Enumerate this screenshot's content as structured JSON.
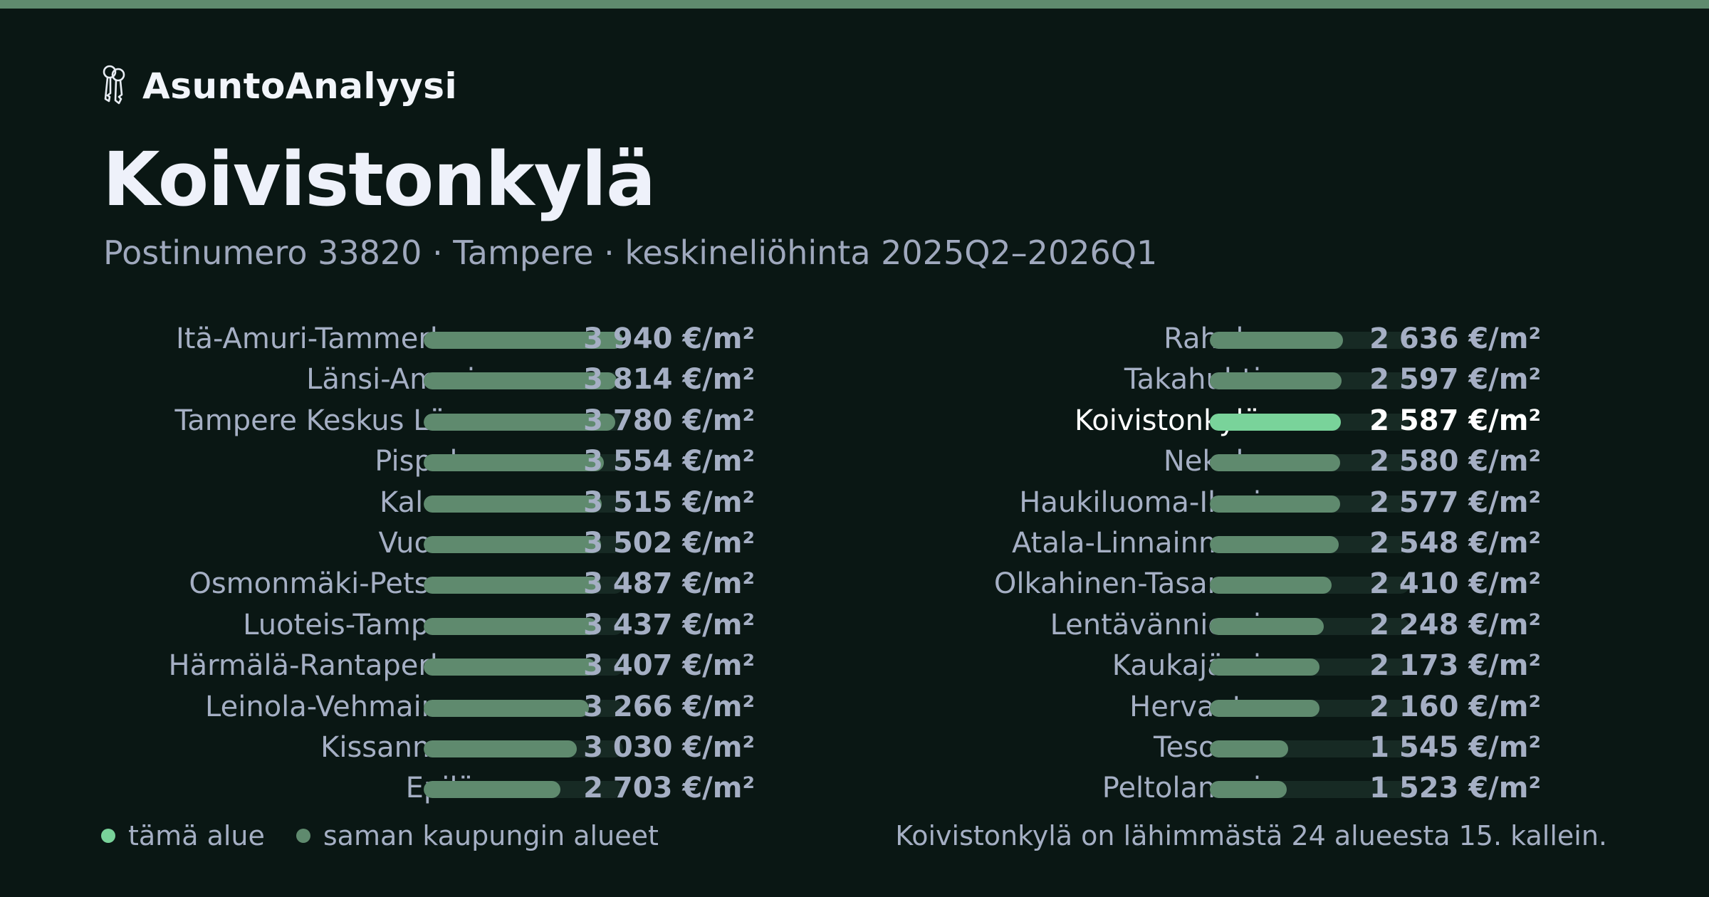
{
  "brand": {
    "name": "AsuntoAnalyysi",
    "icon": "keys-icon"
  },
  "title": "Koivistonkylä",
  "subtitle": "Postinumero 33820 · Tampere · keskineliöhinta 2025Q2–2026Q1",
  "colors": {
    "background": "#0a1714",
    "bar": "#5f8a6e",
    "highlight": "#79d39a",
    "track": "#172a24",
    "text": "#a5afc4"
  },
  "chart_data": {
    "type": "bar",
    "orientation": "horizontal",
    "unit": "€/m²",
    "xlim": [
      0,
      3940
    ],
    "highlight": "Koivistonkylä",
    "left": [
      {
        "name": "Itä-Amuri-Tammerk…",
        "value": 3940,
        "label": "3 940 €/m²"
      },
      {
        "name": "Länsi-Amuri",
        "value": 3814,
        "label": "3 814 €/m²"
      },
      {
        "name": "Tampere Keskus Lä…",
        "value": 3780,
        "label": "3 780 €/m²"
      },
      {
        "name": "Pispala",
        "value": 3554,
        "label": "3 554 €/m²"
      },
      {
        "name": "Kaleva",
        "value": 3515,
        "label": "3 515 €/m²"
      },
      {
        "name": "Vuores",
        "value": 3502,
        "label": "3 502 €/m²"
      },
      {
        "name": "Osmonmäki-Petsa…",
        "value": 3487,
        "label": "3 487 €/m²"
      },
      {
        "name": "Luoteis-Tampere",
        "value": 3437,
        "label": "3 437 €/m²"
      },
      {
        "name": "Härmälä-Rantaperk…",
        "value": 3407,
        "label": "3 407 €/m²"
      },
      {
        "name": "Leinola-Vehmainen",
        "value": 3266,
        "label": "3 266 €/m²"
      },
      {
        "name": "Kissanmaa",
        "value": 3030,
        "label": "3 030 €/m²"
      },
      {
        "name": "Epilä",
        "value": 2703,
        "label": "2 703 €/m²"
      }
    ],
    "right": [
      {
        "name": "Rahola",
        "value": 2636,
        "label": "2 636 €/m²"
      },
      {
        "name": "Takahuhti",
        "value": 2597,
        "label": "2 597 €/m²"
      },
      {
        "name": "Koivistonkylä",
        "value": 2587,
        "label": "2 587 €/m²"
      },
      {
        "name": "Nekala",
        "value": 2580,
        "label": "2 580 €/m²"
      },
      {
        "name": "Haukiluoma-Ikuri",
        "value": 2577,
        "label": "2 577 €/m²"
      },
      {
        "name": "Atala-Linnainmaa",
        "value": 2548,
        "label": "2 548 €/m²"
      },
      {
        "name": "Olkahinen-Tasanne",
        "value": 2410,
        "label": "2 410 €/m²"
      },
      {
        "name": "Lentävänniemi",
        "value": 2248,
        "label": "2 248 €/m²"
      },
      {
        "name": "Kaukajärvi",
        "value": 2173,
        "label": "2 173 €/m²"
      },
      {
        "name": "Hervanta",
        "value": 2160,
        "label": "2 160 €/m²"
      },
      {
        "name": "Tesoma",
        "value": 1545,
        "label": "1 545 €/m²"
      },
      {
        "name": "Peltolammi",
        "value": 1523,
        "label": "1 523 €/m²"
      }
    ]
  },
  "legend": {
    "this_area": "tämä alue",
    "same_city": "saman kaupungin alueet"
  },
  "footnote": "Koivistonkylä on lähimmästä 24 alueesta 15. kallein."
}
